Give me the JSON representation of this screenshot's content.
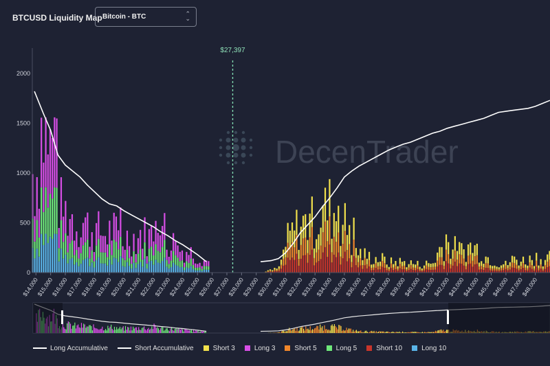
{
  "header": {
    "title": "BTCUSD Liquidity Map",
    "select_value": "Bitcoin - BTC"
  },
  "watermark": "DecenTrader",
  "chart_data": {
    "type": "bar",
    "stacked": true,
    "current_price": 27397,
    "current_price_label": "$27,397",
    "ylim": [
      0,
      2200
    ],
    "y_ticks": [
      0,
      500,
      1000,
      1500,
      2000
    ],
    "x_range": [
      13800,
      49000
    ],
    "x_ticks": [
      "$14,000",
      "$15,000",
      "$16,000",
      "$17,000",
      "$18,000",
      "$19,000",
      "$20,000",
      "$21,000",
      "$22,000",
      "$23,000",
      "$24,000",
      "$25,000",
      "$26,000",
      "$27,000",
      "$28,000",
      "$29,000",
      "$30,000",
      "$31,000",
      "$32,000",
      "$33,000",
      "$34,000",
      "$35,000",
      "$36,000",
      "$37,000",
      "$38,000",
      "$39,000",
      "$40,000",
      "$41,000",
      "$42,000",
      "$43,000",
      "$44,000",
      "$45,000",
      "$46,000",
      "$47,000",
      "$48,000"
    ],
    "x_tick_values": [
      14000,
      15000,
      16000,
      17000,
      18000,
      19000,
      20000,
      21000,
      22000,
      23000,
      24000,
      25000,
      26000,
      27000,
      28000,
      29000,
      30000,
      31000,
      32000,
      33000,
      34000,
      35000,
      36000,
      37000,
      38000,
      39000,
      40000,
      41000,
      42000,
      43000,
      44000,
      45000,
      46000,
      47000,
      48000
    ],
    "series": [
      {
        "name": "Long Accumulative",
        "type": "line",
        "color": "#ffffff"
      },
      {
        "name": "Short Accumulative",
        "type": "line",
        "color": "#ffffff"
      },
      {
        "name": "Short 3",
        "color": "#f2e14c"
      },
      {
        "name": "Long 3",
        "color": "#d84ee6"
      },
      {
        "name": "Short 5",
        "color": "#f0862a"
      },
      {
        "name": "Long 5",
        "color": "#6ee87a"
      },
      {
        "name": "Short 10",
        "color": "#c9352a"
      },
      {
        "name": "Long 10",
        "color": "#5ab4e8"
      }
    ],
    "long_profile": [
      [
        14000,
        1250
      ],
      [
        14400,
        1900
      ],
      [
        14800,
        1450
      ],
      [
        15200,
        1650
      ],
      [
        15600,
        800
      ],
      [
        16000,
        750
      ],
      [
        16400,
        700
      ],
      [
        16800,
        600
      ],
      [
        17200,
        650
      ],
      [
        17600,
        550
      ],
      [
        18000,
        520
      ],
      [
        18400,
        500
      ],
      [
        18800,
        480
      ],
      [
        19200,
        560
      ],
      [
        19600,
        400
      ],
      [
        20000,
        420
      ],
      [
        20400,
        460
      ],
      [
        20800,
        430
      ],
      [
        21200,
        520
      ],
      [
        21600,
        420
      ],
      [
        22000,
        580
      ],
      [
        22400,
        450
      ],
      [
        22800,
        380
      ],
      [
        23200,
        400
      ],
      [
        23600,
        300
      ],
      [
        24000,
        280
      ],
      [
        24400,
        270
      ],
      [
        24800,
        220
      ],
      [
        25200,
        180
      ],
      [
        25600,
        140
      ]
    ],
    "short_profile": [
      [
        29500,
        20
      ],
      [
        30000,
        30
      ],
      [
        30500,
        60
      ],
      [
        31000,
        380
      ],
      [
        31500,
        520
      ],
      [
        32000,
        600
      ],
      [
        32500,
        620
      ],
      [
        33000,
        640
      ],
      [
        33500,
        760
      ],
      [
        34000,
        820
      ],
      [
        34500,
        700
      ],
      [
        35000,
        600
      ],
      [
        35500,
        350
      ],
      [
        36000,
        240
      ],
      [
        36500,
        200
      ],
      [
        37000,
        180
      ],
      [
        37500,
        170
      ],
      [
        38000,
        120
      ],
      [
        38500,
        140
      ],
      [
        39000,
        130
      ],
      [
        39500,
        120
      ],
      [
        40000,
        100
      ],
      [
        40500,
        110
      ],
      [
        41000,
        120
      ],
      [
        41500,
        320
      ],
      [
        42000,
        340
      ],
      [
        42500,
        300
      ],
      [
        43000,
        260
      ],
      [
        43500,
        330
      ],
      [
        44000,
        300
      ],
      [
        44500,
        210
      ],
      [
        45000,
        160
      ],
      [
        45500,
        120
      ],
      [
        46000,
        100
      ],
      [
        46500,
        180
      ],
      [
        47000,
        150
      ],
      [
        47500,
        160
      ],
      [
        48000,
        200
      ],
      [
        48500,
        170
      ],
      [
        49000,
        180
      ]
    ],
    "long_accumulative": [
      [
        13900,
        1820
      ],
      [
        14500,
        1600
      ],
      [
        15000,
        1430
      ],
      [
        15500,
        1180
      ],
      [
        16000,
        1080
      ],
      [
        16500,
        1020
      ],
      [
        17000,
        960
      ],
      [
        17500,
        880
      ],
      [
        18000,
        810
      ],
      [
        18500,
        740
      ],
      [
        19000,
        690
      ],
      [
        19500,
        670
      ],
      [
        20000,
        620
      ],
      [
        20500,
        580
      ],
      [
        21000,
        540
      ],
      [
        21500,
        500
      ],
      [
        22000,
        460
      ],
      [
        22500,
        410
      ],
      [
        23000,
        370
      ],
      [
        23500,
        320
      ],
      [
        24000,
        280
      ],
      [
        24500,
        230
      ],
      [
        25000,
        180
      ],
      [
        25600,
        110
      ]
    ],
    "short_accumulative": [
      [
        29300,
        110
      ],
      [
        30000,
        120
      ],
      [
        30500,
        140
      ],
      [
        31000,
        200
      ],
      [
        31500,
        290
      ],
      [
        32000,
        400
      ],
      [
        32500,
        480
      ],
      [
        33000,
        560
      ],
      [
        33500,
        660
      ],
      [
        34000,
        750
      ],
      [
        34500,
        850
      ],
      [
        35000,
        960
      ],
      [
        35500,
        1020
      ],
      [
        36000,
        1070
      ],
      [
        36500,
        1110
      ],
      [
        37000,
        1150
      ],
      [
        37500,
        1190
      ],
      [
        38000,
        1230
      ],
      [
        38500,
        1260
      ],
      [
        39000,
        1290
      ],
      [
        39500,
        1310
      ],
      [
        40000,
        1340
      ],
      [
        40500,
        1370
      ],
      [
        41000,
        1400
      ],
      [
        41500,
        1420
      ],
      [
        42000,
        1450
      ],
      [
        42500,
        1470
      ],
      [
        43000,
        1490
      ],
      [
        43500,
        1510
      ],
      [
        44000,
        1530
      ],
      [
        44500,
        1550
      ],
      [
        45000,
        1580
      ],
      [
        45500,
        1610
      ],
      [
        46000,
        1620
      ],
      [
        46500,
        1630
      ],
      [
        47000,
        1640
      ],
      [
        47500,
        1650
      ],
      [
        48000,
        1670
      ],
      [
        48500,
        1700
      ],
      [
        49000,
        1730
      ]
    ]
  }
}
